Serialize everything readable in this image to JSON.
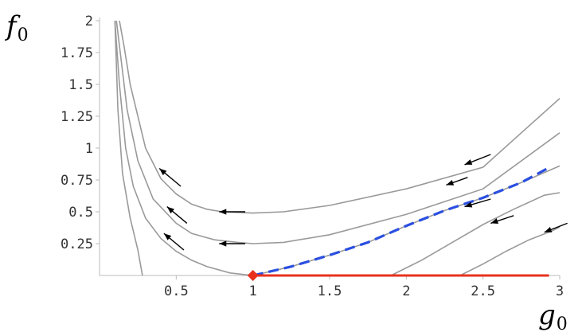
{
  "chart_data": {
    "type": "line",
    "title": "",
    "xlabel": {
      "main": "g",
      "sub": "0"
    },
    "ylabel": {
      "main": "f",
      "sub": "0"
    },
    "xlim": [
      0,
      3
    ],
    "ylim": [
      0,
      2
    ],
    "x_ticks": [
      0.5,
      1,
      1.5,
      2,
      2.5,
      3
    ],
    "x_tick_labels": [
      "0.5",
      "1",
      "1.5",
      "2",
      "2.5",
      "3"
    ],
    "y_ticks": [
      0.25,
      0.5,
      0.75,
      1,
      1.25,
      1.5,
      1.75,
      2
    ],
    "y_tick_labels": [
      "0.25",
      "0.5",
      "0.75",
      "1",
      "1.25",
      "1.5",
      "1.75",
      "2"
    ],
    "grid": false,
    "flow_lines": [
      {
        "points": [
          [
            0.13,
            2.0
          ],
          [
            0.16,
            1.8
          ],
          [
            0.2,
            1.5
          ],
          [
            0.3,
            1.0
          ],
          [
            0.4,
            0.76
          ],
          [
            0.5,
            0.64
          ],
          [
            0.6,
            0.56
          ],
          [
            0.7,
            0.52
          ],
          [
            0.8,
            0.5
          ],
          [
            1.0,
            0.49
          ],
          [
            1.2,
            0.5
          ],
          [
            1.5,
            0.55
          ],
          [
            2.0,
            0.68
          ],
          [
            2.5,
            0.85
          ],
          [
            3.0,
            1.39
          ]
        ]
      },
      {
        "points": [
          [
            0.11,
            2.0
          ],
          [
            0.14,
            1.7
          ],
          [
            0.18,
            1.3
          ],
          [
            0.25,
            0.9
          ],
          [
            0.35,
            0.6
          ],
          [
            0.5,
            0.41
          ],
          [
            0.6,
            0.33
          ],
          [
            0.75,
            0.28
          ],
          [
            0.9,
            0.26
          ],
          [
            1.0,
            0.25
          ],
          [
            1.2,
            0.26
          ],
          [
            1.5,
            0.32
          ],
          [
            2.0,
            0.48
          ],
          [
            2.5,
            0.68
          ],
          [
            3.0,
            1.12
          ]
        ]
      },
      {
        "points": [
          [
            0.1,
            2.0
          ],
          [
            0.13,
            1.5
          ],
          [
            0.17,
            1.0
          ],
          [
            0.22,
            0.7
          ],
          [
            0.3,
            0.45
          ],
          [
            0.4,
            0.29
          ],
          [
            0.5,
            0.19
          ],
          [
            0.6,
            0.12
          ],
          [
            0.7,
            0.07
          ],
          [
            0.85,
            0.02
          ],
          [
            1.0,
            0.0
          ]
        ]
      },
      {
        "points": [
          [
            0.1,
            2.0
          ],
          [
            0.12,
            1.3
          ],
          [
            0.15,
            0.8
          ],
          [
            0.2,
            0.45
          ],
          [
            0.25,
            0.2
          ],
          [
            0.28,
            0.0
          ]
        ]
      },
      {
        "points": [
          [
            1.0,
            0.0
          ],
          [
            1.25,
            0.07
          ],
          [
            1.5,
            0.16
          ],
          [
            1.75,
            0.26
          ],
          [
            2.0,
            0.39
          ],
          [
            2.25,
            0.51
          ],
          [
            2.5,
            0.61
          ],
          [
            2.75,
            0.73
          ],
          [
            3.0,
            0.86
          ]
        ]
      },
      {
        "points": [
          [
            1.9,
            0.0
          ],
          [
            2.1,
            0.12
          ],
          [
            2.3,
            0.26
          ],
          [
            2.5,
            0.4
          ],
          [
            2.7,
            0.52
          ],
          [
            2.9,
            0.63
          ],
          [
            3.0,
            0.65
          ]
        ]
      },
      {
        "points": [
          [
            2.35,
            0.0
          ],
          [
            2.5,
            0.09
          ],
          [
            2.65,
            0.19
          ],
          [
            2.8,
            0.28
          ],
          [
            2.95,
            0.35
          ],
          [
            3.0,
            0.38
          ]
        ]
      }
    ],
    "flow_arrows": [
      {
        "from": [
          2.55,
          0.95
        ],
        "to": [
          2.38,
          0.87
        ]
      },
      {
        "from": [
          2.4,
          0.77
        ],
        "to": [
          2.26,
          0.71
        ]
      },
      {
        "from": [
          2.55,
          0.6
        ],
        "to": [
          2.38,
          0.54
        ]
      },
      {
        "from": [
          2.7,
          0.47
        ],
        "to": [
          2.55,
          0.41
        ]
      },
      {
        "from": [
          3.05,
          0.41
        ],
        "to": [
          2.9,
          0.34
        ]
      },
      {
        "from": [
          0.95,
          0.5
        ],
        "to": [
          0.78,
          0.5
        ]
      },
      {
        "from": [
          0.95,
          0.25
        ],
        "to": [
          0.78,
          0.25
        ]
      },
      {
        "from": [
          0.53,
          0.7
        ],
        "to": [
          0.39,
          0.84
        ]
      },
      {
        "from": [
          0.57,
          0.41
        ],
        "to": [
          0.44,
          0.54
        ]
      },
      {
        "from": [
          0.55,
          0.2
        ],
        "to": [
          0.42,
          0.33
        ]
      }
    ],
    "separatrix": {
      "style": "dashed",
      "color": "#2a4fe0",
      "points": [
        [
          1.0,
          0.0
        ],
        [
          1.25,
          0.07
        ],
        [
          1.5,
          0.16
        ],
        [
          1.75,
          0.26
        ],
        [
          2.0,
          0.39
        ],
        [
          2.25,
          0.51
        ],
        [
          2.5,
          0.61
        ],
        [
          2.75,
          0.73
        ],
        [
          2.92,
          0.84
        ]
      ]
    },
    "fixed_line": {
      "color": "#e8321e",
      "points": [
        [
          1.0,
          0.0
        ],
        [
          2.93,
          0.0
        ]
      ]
    },
    "fixed_point": {
      "color": "#e8321e",
      "shape": "diamond",
      "point": [
        1.0,
        0.0
      ]
    },
    "colors": {
      "flow_line": "#9a9a9a",
      "arrow": "#000000",
      "axis": "#bbbbbb",
      "tick_text": "#333333"
    }
  }
}
